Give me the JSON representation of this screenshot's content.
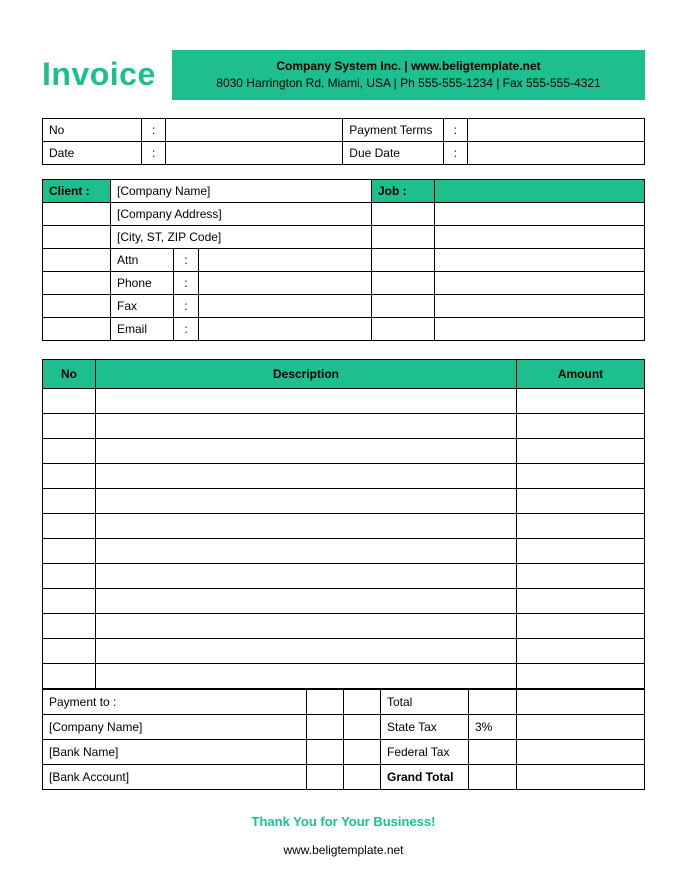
{
  "colors": {
    "accent": "#1DBF8E",
    "border": "#000000",
    "background": "#ffffff",
    "text": "#000000"
  },
  "header": {
    "title": "Invoice",
    "company_line1": "Company System Inc. | www.beligtemplate.net",
    "company_line2": "8030 Harrington Rd, Miami, USA | Ph 555-555-1234 | Fax 555-555-4321"
  },
  "meta": {
    "no_label": "No",
    "no_value": "",
    "date_label": "Date",
    "date_value": "",
    "payment_terms_label": "Payment  Terms",
    "payment_terms_value": "",
    "due_date_label": "Due Date",
    "due_date_value": "",
    "colon": ":"
  },
  "client": {
    "client_label": "Client  :",
    "job_label": "Job  :",
    "company_name": "[Company Name]",
    "company_address": "[Company Address]",
    "city_st_zip": "[City, ST, ZIP Code]",
    "attn_label": "Attn",
    "phone_label": "Phone",
    "fax_label": "Fax",
    "email_label": "Email",
    "colon": ":"
  },
  "items": {
    "columns": {
      "no": "No",
      "description": "Description",
      "amount": "Amount"
    },
    "row_count": 12
  },
  "payment": {
    "payment_to_label": "Payment to :",
    "company_name": "[Company Name]",
    "bank_name": "[Bank Name]",
    "bank_account": "[Bank Account]"
  },
  "totals": {
    "total_label": "Total",
    "state_tax_label": "State Tax",
    "state_tax_value": "3%",
    "federal_tax_label": "Federal Tax",
    "grand_total_label": "Grand Total"
  },
  "footer": {
    "thanks": "Thank You for Your Business!",
    "site": "www.beligtemplate.net"
  }
}
